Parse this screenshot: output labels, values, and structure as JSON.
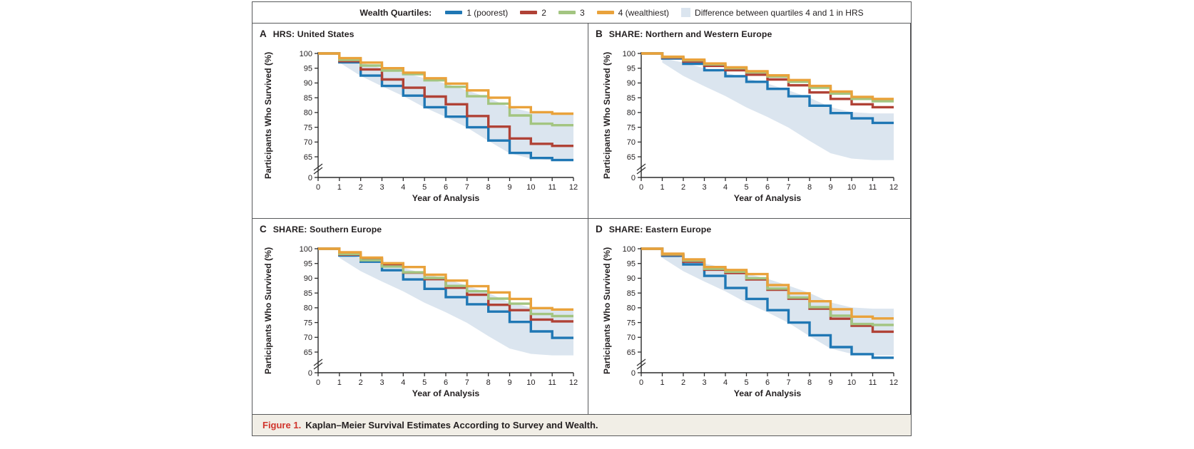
{
  "legend": {
    "title": "Wealth Quartiles:",
    "items": [
      {
        "key": "q1",
        "label": "1 (poorest)"
      },
      {
        "key": "q2",
        "label": "2"
      },
      {
        "key": "q3",
        "label": "3"
      },
      {
        "key": "q4",
        "label": "4 (wealthiest)"
      }
    ],
    "band_item": {
      "label": "Difference between quartiles 4 and 1 in HRS"
    }
  },
  "colors": {
    "q1": "#1f77b4",
    "q2": "#b04236",
    "q3": "#a3c581",
    "q4": "#e9a23b",
    "band": "#dbe5ef",
    "axis": "#2b2b2b",
    "text": "#231f20",
    "border": "#58595b",
    "caption_bg": "#f1eee6",
    "figure_label_red": "#d0342c"
  },
  "axes": {
    "y_label": "Participants Who Survived (%)",
    "x_label": "Year of Analysis",
    "y_ticks": [
      100,
      95,
      90,
      85,
      80,
      75,
      70,
      65,
      0
    ],
    "x_ticks": [
      0,
      1,
      2,
      3,
      4,
      5,
      6,
      7,
      8,
      9,
      10,
      11,
      12
    ],
    "y_axis_break": "between 0 and 65"
  },
  "caption": {
    "label": "Figure 1.",
    "text": "Kaplan–Meier Survival Estimates According to Survey and Wealth."
  },
  "chart_data": {
    "type": "line",
    "subtype": "kaplan-meier-step",
    "note": "values[i] = percent surviving during year interval [i, i+1); axis broken between 0 and 65",
    "x_years": [
      0,
      1,
      2,
      3,
      4,
      5,
      6,
      7,
      8,
      9,
      10,
      11,
      12
    ],
    "ylim": [
      65,
      100
    ],
    "panels": [
      {
        "id": "a",
        "letter": "A",
        "title": "HRS: United States",
        "series": [
          {
            "key": "q1",
            "name": "1 (poorest)",
            "values": [
              100,
              97.0,
              92.5,
              89.0,
              85.7,
              81.8,
              78.6,
              75.0,
              70.5,
              66.3,
              64.6,
              63.9
            ]
          },
          {
            "key": "q2",
            "name": "2",
            "values": [
              100,
              97.4,
              94.6,
              91.2,
              88.4,
              85.4,
              82.8,
              78.8,
              75.2,
              71.2,
              69.4,
              68.7
            ]
          },
          {
            "key": "q3",
            "name": "3",
            "values": [
              100,
              97.8,
              95.9,
              94.2,
              93.0,
              90.9,
              88.7,
              85.5,
              83.0,
              79.0,
              76.2,
              75.7
            ]
          },
          {
            "key": "q4",
            "name": "4 (wealthiest)",
            "values": [
              100,
              98.4,
              96.9,
              95.0,
              93.5,
              91.6,
              89.8,
              87.5,
              85.0,
              81.8,
              80.1,
              79.6
            ]
          }
        ]
      },
      {
        "id": "b",
        "letter": "B",
        "title": "SHARE: Northern and Western Europe",
        "series": [
          {
            "key": "q1",
            "name": "1 (poorest)",
            "values": [
              100,
              98.3,
              96.5,
              94.3,
              92.3,
              90.4,
              88.0,
              85.5,
              82.3,
              79.8,
              78.0,
              76.5
            ]
          },
          {
            "key": "q2",
            "name": "2",
            "values": [
              100,
              98.6,
              97.3,
              95.8,
              94.3,
              92.8,
              91.2,
              89.2,
              86.8,
              84.6,
              82.8,
              81.8
            ]
          },
          {
            "key": "q3",
            "name": "3",
            "values": [
              100,
              98.8,
              97.7,
              96.3,
              95.0,
              93.6,
              92.2,
              90.4,
              88.4,
              86.4,
              84.6,
              83.8
            ]
          },
          {
            "key": "q4",
            "name": "4 (wealthiest)",
            "values": [
              100,
              98.9,
              97.9,
              96.6,
              95.3,
              94.0,
              92.6,
              91.0,
              89.0,
              87.1,
              85.3,
              84.6
            ]
          }
        ]
      },
      {
        "id": "c",
        "letter": "C",
        "title": "SHARE: Southern Europe",
        "series": [
          {
            "key": "q1",
            "name": "1 (poorest)",
            "values": [
              100,
              97.7,
              95.6,
              92.7,
              89.6,
              86.4,
              83.6,
              81.2,
              78.7,
              75.2,
              72.0,
              69.8
            ]
          },
          {
            "key": "q2",
            "name": "2",
            "values": [
              100,
              98.0,
              96.5,
              94.3,
              91.9,
              89.7,
              86.8,
              84.4,
              81.0,
              79.2,
              76.0,
              75.4
            ]
          },
          {
            "key": "q3",
            "name": "3",
            "values": [
              100,
              98.2,
              96.1,
              94.0,
              92.0,
              90.1,
              87.4,
              85.6,
              83.1,
              81.4,
              77.9,
              77.2
            ]
          },
          {
            "key": "q4",
            "name": "4 (wealthiest)",
            "values": [
              100,
              98.8,
              97.0,
              95.1,
              93.8,
              91.2,
              89.2,
              87.3,
              85.2,
              83.0,
              79.9,
              79.4
            ]
          }
        ]
      },
      {
        "id": "d",
        "letter": "D",
        "title": "SHARE: Eastern Europe",
        "series": [
          {
            "key": "q1",
            "name": "1 (poorest)",
            "values": [
              100,
              97.6,
              94.7,
              90.8,
              86.7,
              83.0,
              79.2,
              75.0,
              70.7,
              66.7,
              64.3,
              63.1
            ]
          },
          {
            "key": "q2",
            "name": "2",
            "values": [
              100,
              97.9,
              95.6,
              92.9,
              91.8,
              89.6,
              86.1,
              83.1,
              79.7,
              76.3,
              73.9,
              71.9
            ]
          },
          {
            "key": "q3",
            "name": "3",
            "values": [
              100,
              98.1,
              96.0,
              93.2,
              92.2,
              90.0,
              86.5,
              83.5,
              80.2,
              77.3,
              74.5,
              74.2
            ]
          },
          {
            "key": "q4",
            "name": "4 (wealthiest)",
            "values": [
              100,
              98.3,
              96.4,
              93.8,
              92.8,
              91.4,
              87.7,
              84.9,
              82.2,
              79.5,
              77.0,
              76.4
            ]
          }
        ]
      }
    ],
    "hrs_difference_band": {
      "name": "Difference between quartiles 4 and 1 in HRS",
      "upper": [
        [
          1,
          98.4
        ],
        [
          2,
          96.9
        ],
        [
          3,
          95.0
        ],
        [
          4,
          93.5
        ],
        [
          5,
          91.6
        ],
        [
          6,
          89.8
        ],
        [
          7,
          87.5
        ],
        [
          8,
          85.0
        ],
        [
          9,
          81.8
        ],
        [
          10,
          80.1
        ],
        [
          11,
          79.7
        ],
        [
          12,
          79.7
        ]
      ],
      "lower": [
        [
          1,
          96.9
        ],
        [
          2,
          92.4
        ],
        [
          3,
          88.9
        ],
        [
          4,
          85.6
        ],
        [
          5,
          81.7
        ],
        [
          6,
          78.5
        ],
        [
          7,
          74.9
        ],
        [
          8,
          70.4
        ],
        [
          9,
          66.2
        ],
        [
          10,
          64.4
        ],
        [
          11,
          63.9
        ],
        [
          12,
          63.9
        ]
      ]
    }
  }
}
